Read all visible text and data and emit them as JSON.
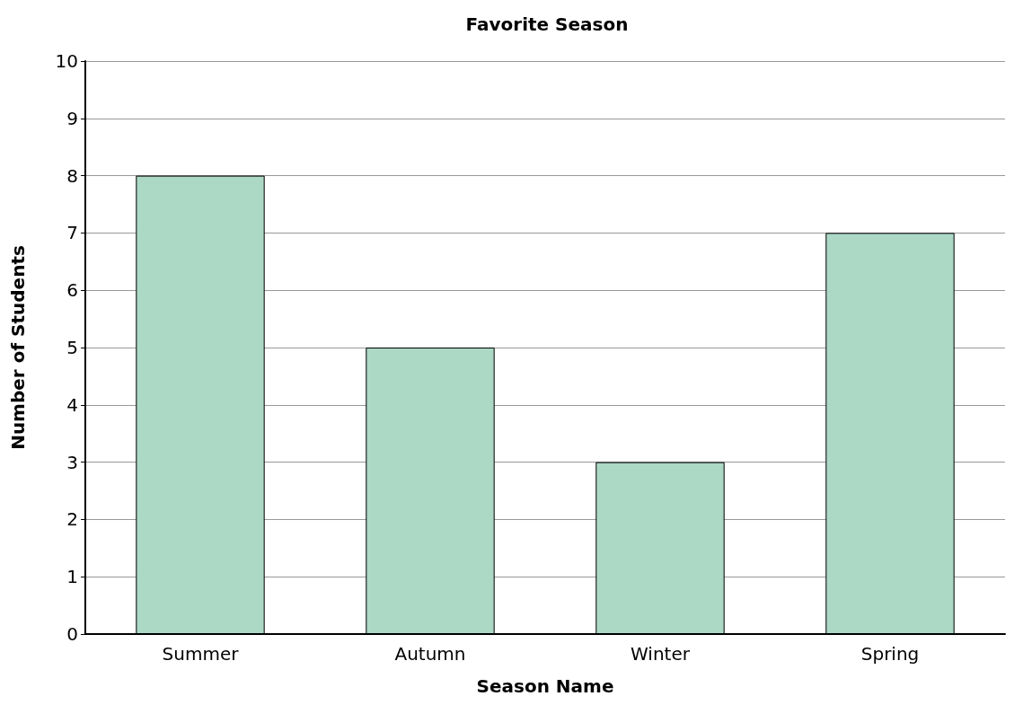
{
  "chart_data": {
    "type": "bar",
    "title": "Favorite Season",
    "xlabel": "Season Name",
    "ylabel": "Number of Students",
    "categories": [
      "Summer",
      "Autumn",
      "Winter",
      "Spring"
    ],
    "values": [
      8,
      5,
      3,
      7
    ],
    "color": "#acd8c6",
    "ylim": [
      0,
      10
    ],
    "yticks": [
      0,
      1,
      2,
      3,
      4,
      5,
      6,
      7,
      8,
      9,
      10
    ],
    "grid": "y"
  }
}
